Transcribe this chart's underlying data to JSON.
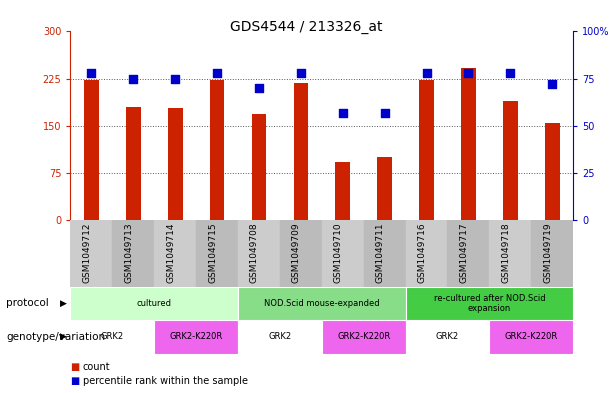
{
  "title": "GDS4544 / 213326_at",
  "samples": [
    "GSM1049712",
    "GSM1049713",
    "GSM1049714",
    "GSM1049715",
    "GSM1049708",
    "GSM1049709",
    "GSM1049710",
    "GSM1049711",
    "GSM1049716",
    "GSM1049717",
    "GSM1049718",
    "GSM1049719"
  ],
  "counts": [
    222,
    180,
    178,
    222,
    168,
    218,
    93,
    100,
    222,
    242,
    190,
    155
  ],
  "percentiles": [
    78,
    75,
    75,
    78,
    70,
    78,
    57,
    57,
    78,
    78,
    78,
    72
  ],
  "ylim_left": [
    0,
    300
  ],
  "ylim_right": [
    0,
    100
  ],
  "yticks_left": [
    0,
    75,
    150,
    225,
    300
  ],
  "yticks_right": [
    0,
    25,
    50,
    75,
    100
  ],
  "bar_color": "#cc2200",
  "dot_color": "#0000cc",
  "protocol_groups": [
    {
      "label": "cultured",
      "start": 0,
      "end": 3,
      "color": "#ccffcc"
    },
    {
      "label": "NOD.Scid mouse-expanded",
      "start": 4,
      "end": 7,
      "color": "#88dd88"
    },
    {
      "label": "re-cultured after NOD.Scid\nexpansion",
      "start": 8,
      "end": 11,
      "color": "#44cc44"
    }
  ],
  "genotype_groups": [
    {
      "label": "GRK2",
      "start": 0,
      "end": 1,
      "color": "#ffffff"
    },
    {
      "label": "GRK2-K220R",
      "start": 2,
      "end": 3,
      "color": "#ee66ee"
    },
    {
      "label": "GRK2",
      "start": 4,
      "end": 5,
      "color": "#ffffff"
    },
    {
      "label": "GRK2-K220R",
      "start": 6,
      "end": 7,
      "color": "#ee66ee"
    },
    {
      "label": "GRK2",
      "start": 8,
      "end": 9,
      "color": "#ffffff"
    },
    {
      "label": "GRK2-K220R",
      "start": 10,
      "end": 11,
      "color": "#ee66ee"
    }
  ],
  "bar_width": 0.35,
  "dot_size": 30,
  "grid_color": "#555555",
  "bg_color": "#ffffff",
  "plot_bg": "#ffffff",
  "left_axis_color": "#cc2200",
  "right_axis_color": "#0000cc",
  "title_fontsize": 10,
  "tick_fontsize": 7,
  "xtick_fontsize": 6.5,
  "annotation_fontsize": 7,
  "label_fontsize": 7.5,
  "xtick_color": "#000000",
  "xbg_even": "#cccccc",
  "xbg_odd": "#bbbbbb"
}
